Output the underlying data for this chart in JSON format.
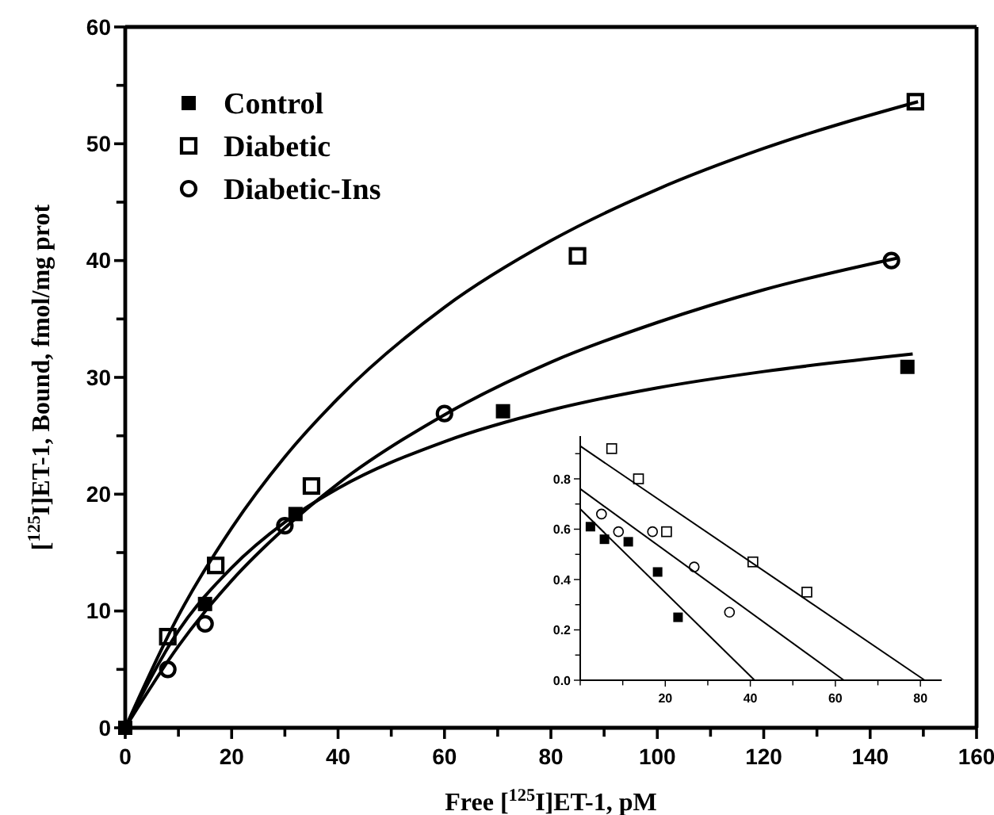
{
  "chart_data": [
    {
      "type": "scatter",
      "xlabel": "Free [$^{125}$I]ET-1, pM",
      "ylabel": "[$^{125}$I]ET-1, Bound, fmol/mg prot",
      "xlim": [
        0,
        160
      ],
      "ylim": [
        0,
        60
      ],
      "xticks": [
        0,
        {
          "value": 10,
          "label": null
        },
        20,
        {
          "value": 30,
          "label": null
        },
        40,
        {
          "value": 50,
          "label": null
        },
        60,
        {
          "value": 70,
          "label": null
        },
        80,
        {
          "value": 90,
          "label": null
        },
        100,
        {
          "value": 110,
          "label": null
        },
        120,
        {
          "value": 130,
          "label": null
        },
        140,
        {
          "value": 150,
          "label": null
        },
        160
      ],
      "yticks": [
        0,
        {
          "value": 5,
          "label": null
        },
        10,
        {
          "value": 15,
          "label": null
        },
        20,
        {
          "value": 25,
          "label": null
        },
        30,
        {
          "value": 35,
          "label": null
        },
        40,
        {
          "value": 45,
          "label": null
        },
        50,
        {
          "value": 55,
          "label": null
        },
        60
      ],
      "legend": "top left",
      "grid": false,
      "series": [
        {
          "name": "Control",
          "marker": "square",
          "color": "#000000",
          "x": [
            0,
            15,
            32,
            71,
            147
          ],
          "values": [
            0,
            10.6,
            18.3,
            27.1,
            30.9
          ]
        },
        {
          "name": "Diabetic",
          "marker": "square",
          "color": "#000000",
          "x": [
            8,
            17,
            35,
            85,
            148.5
          ],
          "values": [
            7.8,
            13.9,
            20.7,
            40.4,
            53.6
          ]
        },
        {
          "name": "Diabetic-Ins",
          "marker": "circle",
          "color": "#000000",
          "x": [
            8,
            15,
            30,
            60,
            144
          ],
          "values": [
            5,
            8.9,
            17.3,
            26.9,
            40
          ]
        },
        {
          "type": "line",
          "marker": "none",
          "color": "#000000",
          "x": [
            0,
            10,
            20,
            30,
            40,
            60,
            80,
            100,
            120,
            148
          ],
          "values": [
            0,
            8.3,
            13.7,
            17.6,
            20.5,
            24.5,
            27.2,
            29.1,
            30.5,
            32
          ]
        },
        {
          "type": "line",
          "marker": "none",
          "color": "#000000",
          "x": [
            0,
            10,
            20,
            30,
            40,
            60,
            80,
            100,
            120,
            149
          ],
          "values": [
            0,
            9.6,
            17.1,
            23.2,
            28.2,
            36,
            41.7,
            46.1,
            49.6,
            53.6
          ]
        },
        {
          "type": "line",
          "marker": "none",
          "color": "#000000",
          "x": [
            0,
            10,
            20,
            30,
            40,
            60,
            80,
            100,
            120,
            145
          ],
          "values": [
            0,
            7,
            12.6,
            17.1,
            20.9,
            26.8,
            31.3,
            34.7,
            37.5,
            40.2
          ]
        }
      ]
    },
    {
      "type": "scatter",
      "xlim": [
        0,
        85
      ],
      "ylim": [
        0,
        0.97
      ],
      "xticks": [
        {
          "value": 0,
          "label": null
        },
        {
          "value": 10,
          "label": null
        },
        20,
        {
          "value": 30,
          "label": null
        },
        40,
        {
          "value": 50,
          "label": null
        },
        60,
        {
          "value": 70,
          "label": null
        },
        80
      ],
      "yticks": [
        {
          "value": 0,
          "label": "0.0"
        },
        {
          "value": 0.1,
          "label": null
        },
        0.2,
        {
          "value": 0.3,
          "label": null
        },
        0.4,
        {
          "value": 0.5,
          "label": null
        },
        0.6,
        {
          "value": 0.7,
          "label": null
        },
        0.8,
        {
          "value": 0.9,
          "label": null
        }
      ],
      "grid": false,
      "series": [
        {
          "marker": "square",
          "color": "#000000",
          "x": [
            2.4,
            5.7,
            11.3,
            18.2,
            23
          ],
          "values": [
            0.61,
            0.56,
            0.55,
            0.43,
            0.25
          ]
        },
        {
          "marker": "square",
          "color": "#000000",
          "x": [
            7.4,
            13.7,
            20.3,
            40.6,
            53.3
          ],
          "values": [
            0.92,
            0.8,
            0.59,
            0.47,
            0.35
          ]
        },
        {
          "marker": "circle",
          "color": "#000000",
          "x": [
            5,
            9,
            17,
            26.8,
            35.1
          ],
          "values": [
            0.66,
            0.59,
            0.59,
            0.45,
            0.27
          ]
        },
        {
          "type": "line",
          "marker": "none",
          "color": "#000000",
          "x": [
            0,
            41
          ],
          "values": [
            0.68,
            0
          ]
        },
        {
          "type": "line",
          "marker": "none",
          "color": "#000000",
          "x": [
            0,
            81
          ],
          "values": [
            0.93,
            0
          ]
        },
        {
          "type": "line",
          "marker": "none",
          "color": "#000000",
          "x": [
            0,
            62
          ],
          "values": [
            0.76,
            0
          ]
        }
      ]
    }
  ]
}
